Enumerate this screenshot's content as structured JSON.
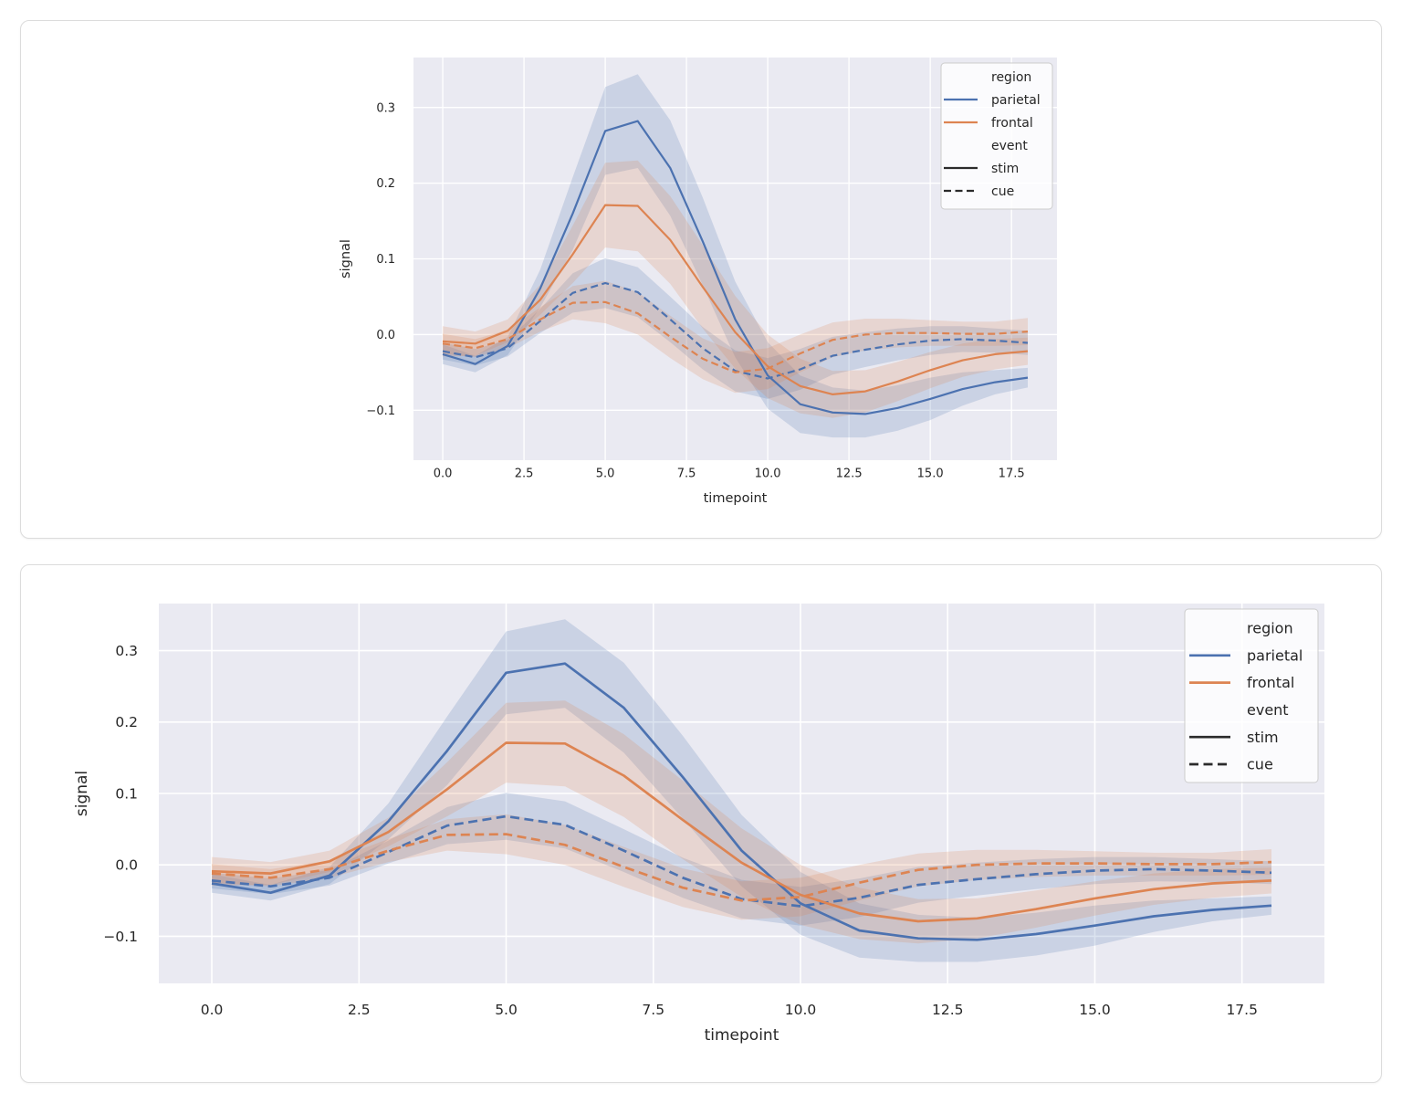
{
  "page": {
    "background": "#ffffff",
    "card_border": "#dcdcdc"
  },
  "colors": {
    "parietal": "#4C72B0",
    "frontal": "#DD8452",
    "plot_background": "#EAEAF2",
    "gridline": "#FFFFFF",
    "text": "#262626",
    "legend_handle_dark": "#2B2B2B",
    "band_opacity": 0.2
  },
  "chart_data": [
    {
      "id": "fig-top",
      "type": "line",
      "title": "",
      "xlabel": "timepoint",
      "ylabel": "signal",
      "grid": true,
      "error_bands": true,
      "xlim": [
        -0.9,
        18.9
      ],
      "ylim": [
        -0.166,
        0.366
      ],
      "x": [
        0,
        1,
        2,
        3,
        4,
        5,
        6,
        7,
        8,
        9,
        10,
        11,
        12,
        13,
        14,
        15,
        16,
        17,
        18
      ],
      "xticks": {
        "values": [
          0,
          2.5,
          5,
          7.5,
          10,
          12.5,
          15,
          17.5
        ],
        "labels": [
          "0.0",
          "2.5",
          "5.0",
          "7.5",
          "10.0",
          "12.5",
          "15.0",
          "17.5"
        ]
      },
      "yticks": {
        "values": [
          0.3,
          0.2,
          0.1,
          0.0,
          -0.1
        ],
        "labels": [
          "0.3",
          "0.2",
          "0.1",
          "0.0",
          "−0.1"
        ]
      },
      "legend": {
        "position": "upper right",
        "rows": [
          {
            "kind": "title",
            "label": "region"
          },
          {
            "kind": "line",
            "label": "parietal",
            "color": "#4C72B0",
            "dashed": false
          },
          {
            "kind": "line",
            "label": "frontal",
            "color": "#DD8452",
            "dashed": false
          },
          {
            "kind": "title",
            "label": "event"
          },
          {
            "kind": "line",
            "label": "stim",
            "color": "#2B2B2B",
            "dashed": false
          },
          {
            "kind": "line",
            "label": "cue",
            "color": "#2B2B2B",
            "dashed": true
          }
        ]
      },
      "series": [
        {
          "name": "parietal-stim",
          "region": "parietal",
          "event": "stim",
          "color": "#4C72B0",
          "dashed": false,
          "values": [
            -0.026,
            -0.039,
            -0.015,
            0.061,
            0.16,
            0.269,
            0.282,
            0.22,
            0.123,
            0.02,
            -0.054,
            -0.092,
            -0.103,
            -0.105,
            -0.097,
            -0.085,
            -0.072,
            -0.063,
            -0.057
          ],
          "ci": [
            0.013,
            0.011,
            0.012,
            0.025,
            0.048,
            0.058,
            0.062,
            0.063,
            0.058,
            0.05,
            0.044,
            0.038,
            0.033,
            0.031,
            0.03,
            0.028,
            0.022,
            0.016,
            0.013
          ]
        },
        {
          "name": "parietal-cue",
          "region": "parietal",
          "event": "cue",
          "color": "#4C72B0",
          "dashed": true,
          "values": [
            -0.022,
            -0.03,
            -0.018,
            0.018,
            0.055,
            0.068,
            0.056,
            0.02,
            -0.018,
            -0.048,
            -0.058,
            -0.046,
            -0.028,
            -0.02,
            -0.013,
            -0.008,
            -0.006,
            -0.008,
            -0.011
          ],
          "ci": [
            0.011,
            0.011,
            0.011,
            0.016,
            0.026,
            0.033,
            0.033,
            0.03,
            0.028,
            0.027,
            0.027,
            0.027,
            0.025,
            0.023,
            0.021,
            0.019,
            0.017,
            0.016,
            0.016
          ]
        },
        {
          "name": "frontal-stim",
          "region": "frontal",
          "event": "stim",
          "color": "#DD8452",
          "dashed": false,
          "values": [
            -0.009,
            -0.012,
            0.005,
            0.046,
            0.106,
            0.171,
            0.17,
            0.125,
            0.063,
            0.003,
            -0.042,
            -0.068,
            -0.079,
            -0.075,
            -0.062,
            -0.047,
            -0.034,
            -0.026,
            -0.022
          ],
          "ci": [
            0.02,
            0.016,
            0.015,
            0.02,
            0.038,
            0.056,
            0.06,
            0.058,
            0.055,
            0.048,
            0.042,
            0.036,
            0.031,
            0.028,
            0.026,
            0.024,
            0.022,
            0.02,
            0.018
          ]
        },
        {
          "name": "frontal-cue",
          "region": "frontal",
          "event": "cue",
          "color": "#DD8452",
          "dashed": true,
          "values": [
            -0.012,
            -0.018,
            -0.006,
            0.02,
            0.042,
            0.043,
            0.028,
            -0.003,
            -0.032,
            -0.05,
            -0.045,
            -0.025,
            -0.007,
            0.0,
            0.002,
            0.002,
            0.001,
            0.001,
            0.004
          ],
          "ci": [
            0.013,
            0.012,
            0.012,
            0.016,
            0.022,
            0.028,
            0.028,
            0.028,
            0.027,
            0.027,
            0.027,
            0.025,
            0.023,
            0.021,
            0.019,
            0.017,
            0.016,
            0.016,
            0.018
          ]
        }
      ]
    },
    {
      "id": "fig-bottom",
      "type": "line",
      "title": "",
      "xlabel": "timepoint",
      "ylabel": "signal",
      "grid": true,
      "error_bands": true,
      "xlim": [
        -0.9,
        18.9
      ],
      "ylim": [
        -0.166,
        0.366
      ],
      "x": [
        0,
        1,
        2,
        3,
        4,
        5,
        6,
        7,
        8,
        9,
        10,
        11,
        12,
        13,
        14,
        15,
        16,
        17,
        18
      ],
      "xticks": {
        "values": [
          0,
          2.5,
          5,
          7.5,
          10,
          12.5,
          15,
          17.5
        ],
        "labels": [
          "0.0",
          "2.5",
          "5.0",
          "7.5",
          "10.0",
          "12.5",
          "15.0",
          "17.5"
        ]
      },
      "yticks": {
        "values": [
          0.3,
          0.2,
          0.1,
          0.0,
          -0.1
        ],
        "labels": [
          "0.3",
          "0.2",
          "0.1",
          "0.0",
          "−0.1"
        ]
      },
      "legend": {
        "position": "upper right",
        "rows": [
          {
            "kind": "title",
            "label": "region"
          },
          {
            "kind": "line",
            "label": "parietal",
            "color": "#4C72B0",
            "dashed": false
          },
          {
            "kind": "line",
            "label": "frontal",
            "color": "#DD8452",
            "dashed": false
          },
          {
            "kind": "title",
            "label": "event"
          },
          {
            "kind": "line",
            "label": "stim",
            "color": "#2B2B2B",
            "dashed": false
          },
          {
            "kind": "line",
            "label": "cue",
            "color": "#2B2B2B",
            "dashed": true
          }
        ]
      },
      "series": [
        {
          "name": "parietal-stim",
          "region": "parietal",
          "event": "stim",
          "color": "#4C72B0",
          "dashed": false,
          "values": [
            -0.026,
            -0.039,
            -0.015,
            0.061,
            0.16,
            0.269,
            0.282,
            0.22,
            0.123,
            0.02,
            -0.054,
            -0.092,
            -0.103,
            -0.105,
            -0.097,
            -0.085,
            -0.072,
            -0.063,
            -0.057
          ],
          "ci": [
            0.013,
            0.011,
            0.012,
            0.025,
            0.048,
            0.058,
            0.062,
            0.063,
            0.058,
            0.05,
            0.044,
            0.038,
            0.033,
            0.031,
            0.03,
            0.028,
            0.022,
            0.016,
            0.013
          ]
        },
        {
          "name": "parietal-cue",
          "region": "parietal",
          "event": "cue",
          "color": "#4C72B0",
          "dashed": true,
          "values": [
            -0.022,
            -0.03,
            -0.018,
            0.018,
            0.055,
            0.068,
            0.056,
            0.02,
            -0.018,
            -0.048,
            -0.058,
            -0.046,
            -0.028,
            -0.02,
            -0.013,
            -0.008,
            -0.006,
            -0.008,
            -0.011
          ],
          "ci": [
            0.011,
            0.011,
            0.011,
            0.016,
            0.026,
            0.033,
            0.033,
            0.03,
            0.028,
            0.027,
            0.027,
            0.027,
            0.025,
            0.023,
            0.021,
            0.019,
            0.017,
            0.016,
            0.016
          ]
        },
        {
          "name": "frontal-stim",
          "region": "frontal",
          "event": "stim",
          "color": "#DD8452",
          "dashed": false,
          "values": [
            -0.009,
            -0.012,
            0.005,
            0.046,
            0.106,
            0.171,
            0.17,
            0.125,
            0.063,
            0.003,
            -0.042,
            -0.068,
            -0.079,
            -0.075,
            -0.062,
            -0.047,
            -0.034,
            -0.026,
            -0.022
          ],
          "ci": [
            0.02,
            0.016,
            0.015,
            0.02,
            0.038,
            0.056,
            0.06,
            0.058,
            0.055,
            0.048,
            0.042,
            0.036,
            0.031,
            0.028,
            0.026,
            0.024,
            0.022,
            0.02,
            0.018
          ]
        },
        {
          "name": "frontal-cue",
          "region": "frontal",
          "event": "cue",
          "color": "#DD8452",
          "dashed": true,
          "values": [
            -0.012,
            -0.018,
            -0.006,
            0.02,
            0.042,
            0.043,
            0.028,
            -0.003,
            -0.032,
            -0.05,
            -0.045,
            -0.025,
            -0.007,
            0.0,
            0.002,
            0.002,
            0.001,
            0.001,
            0.004
          ],
          "ci": [
            0.013,
            0.012,
            0.012,
            0.016,
            0.022,
            0.028,
            0.028,
            0.028,
            0.027,
            0.027,
            0.027,
            0.025,
            0.023,
            0.021,
            0.019,
            0.017,
            0.016,
            0.016,
            0.018
          ]
        }
      ]
    }
  ]
}
